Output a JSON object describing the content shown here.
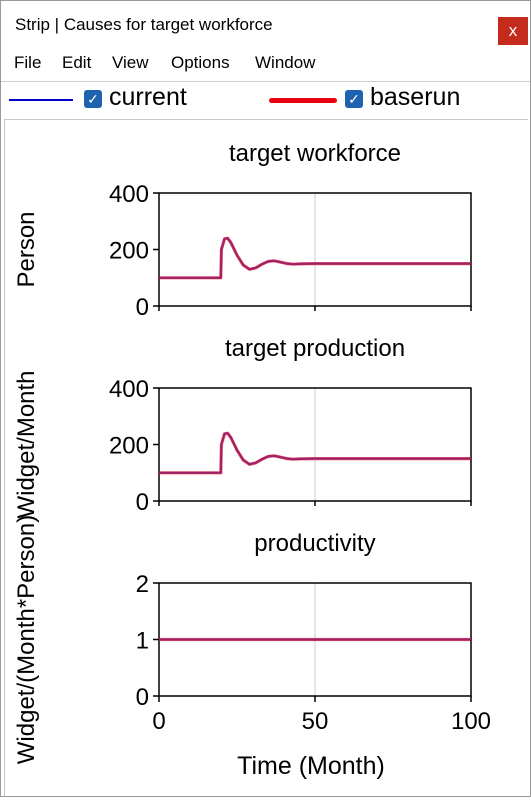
{
  "window": {
    "title": "Strip | Causes for target workforce",
    "close_glyph": "x"
  },
  "menu": {
    "items": [
      "File",
      "Edit",
      "View",
      "Options",
      "Window"
    ]
  },
  "legend": {
    "entries": [
      {
        "name": "current",
        "color": "#0000cc",
        "checked": true
      },
      {
        "name": "baserun",
        "color": "#e8000b",
        "checked": true
      }
    ]
  },
  "colors": {
    "current": "#0000cc",
    "baserun": "#e8000b",
    "overlap": "#a0206a",
    "grid": "#cccccc",
    "close": "#c42b1c",
    "checkbox": "#1f63b0"
  },
  "chart_data": [
    {
      "type": "line",
      "title": "target workforce",
      "ylabel": "Person",
      "xlabel": "",
      "xlim": [
        0,
        100
      ],
      "ylim": [
        0,
        400
      ],
      "yticks": [
        "0",
        "200",
        "400"
      ],
      "series": [
        {
          "name": "current",
          "x": [
            0,
            19.8,
            20,
            21,
            22,
            23,
            25,
            27,
            29,
            31,
            33,
            35,
            37,
            39,
            41,
            43,
            45,
            50,
            60,
            70,
            80,
            90,
            100
          ],
          "y": [
            100,
            100,
            200,
            238,
            240,
            225,
            180,
            145,
            130,
            135,
            148,
            158,
            160,
            155,
            150,
            148,
            149,
            150,
            150,
            150,
            150,
            150,
            150
          ]
        },
        {
          "name": "baserun",
          "x": [
            0,
            19.8,
            20,
            21,
            22,
            23,
            25,
            27,
            29,
            31,
            33,
            35,
            37,
            39,
            41,
            43,
            45,
            50,
            60,
            70,
            80,
            90,
            100
          ],
          "y": [
            100,
            100,
            200,
            238,
            240,
            225,
            180,
            145,
            130,
            135,
            148,
            158,
            160,
            155,
            150,
            148,
            149,
            150,
            150,
            150,
            150,
            150,
            150
          ]
        }
      ]
    },
    {
      "type": "line",
      "title": "target production",
      "ylabel": "Widget/Month",
      "xlabel": "",
      "xlim": [
        0,
        100
      ],
      "ylim": [
        0,
        400
      ],
      "yticks": [
        "0",
        "200",
        "400"
      ],
      "series": [
        {
          "name": "current",
          "x": [
            0,
            19.8,
            20,
            21,
            22,
            23,
            25,
            27,
            29,
            31,
            33,
            35,
            37,
            39,
            41,
            43,
            45,
            50,
            60,
            70,
            80,
            90,
            100
          ],
          "y": [
            100,
            100,
            200,
            238,
            240,
            225,
            180,
            145,
            130,
            135,
            148,
            158,
            160,
            155,
            150,
            148,
            149,
            150,
            150,
            150,
            150,
            150,
            150
          ]
        },
        {
          "name": "baserun",
          "x": [
            0,
            19.8,
            20,
            21,
            22,
            23,
            25,
            27,
            29,
            31,
            33,
            35,
            37,
            39,
            41,
            43,
            45,
            50,
            60,
            70,
            80,
            90,
            100
          ],
          "y": [
            100,
            100,
            200,
            238,
            240,
            225,
            180,
            145,
            130,
            135,
            148,
            158,
            160,
            155,
            150,
            148,
            149,
            150,
            150,
            150,
            150,
            150,
            150
          ]
        }
      ]
    },
    {
      "type": "line",
      "title": "productivity",
      "ylabel": "Widget/(Month*Person)",
      "xlabel": "Time (Month)",
      "xlim": [
        0,
        100
      ],
      "ylim": [
        0,
        2
      ],
      "yticks": [
        "0",
        "1",
        "2"
      ],
      "xticks": [
        "0",
        "50",
        "100"
      ],
      "series": [
        {
          "name": "current",
          "x": [
            0,
            100
          ],
          "y": [
            1,
            1
          ]
        },
        {
          "name": "baserun",
          "x": [
            0,
            100
          ],
          "y": [
            1,
            1
          ]
        }
      ]
    }
  ]
}
